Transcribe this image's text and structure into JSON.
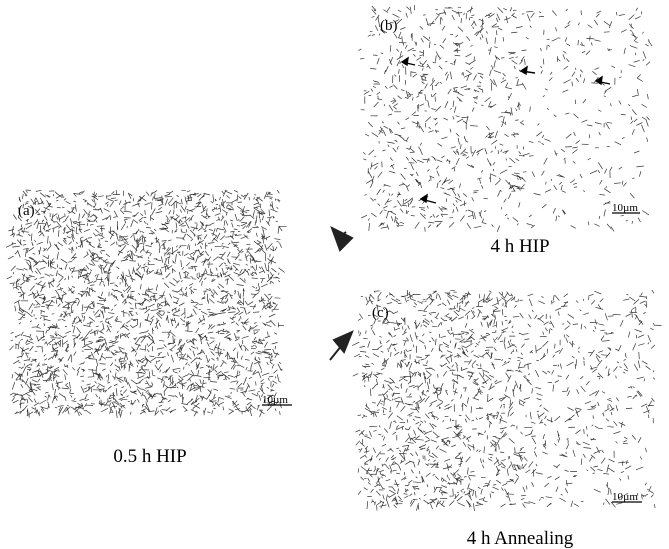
{
  "panels": [
    {
      "label": "(a)",
      "scale_bar": "10µm",
      "caption": "0.5 h HIP"
    },
    {
      "label": "(b)",
      "scale_bar": "10µm",
      "caption": "4 h HIP"
    },
    {
      "label": "(c)",
      "scale_bar": "10µm",
      "caption": "4 h Annealing"
    }
  ]
}
